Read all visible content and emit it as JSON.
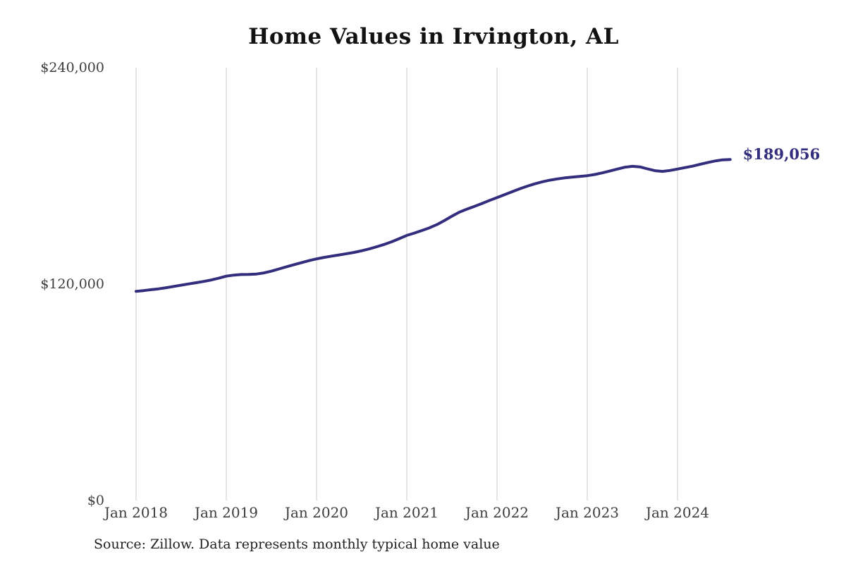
{
  "title": "Home Values in Irvington, AL",
  "source_note": "Source: Zillow. Data represents monthly typical home value",
  "final_value_label": "$189,056",
  "colors": {
    "background": "#ffffff",
    "line": "#322e7d",
    "final_value_label": "#322e7d",
    "title": "#121212",
    "axis_label": "#3d3d3d",
    "gridline": "#cbcbcb",
    "source": "#1f1f1f"
  },
  "chart_data": {
    "type": "line",
    "title": "Home Values in Irvington, AL",
    "xlabel": "",
    "ylabel": "",
    "ylim": [
      0,
      240000
    ],
    "grid": "vertical-only",
    "legend": "none",
    "annotation": "$189,056",
    "y_ticks": [
      {
        "label": "$0",
        "value": 0
      },
      {
        "label": "$120,000",
        "value": 120000
      },
      {
        "label": "$240,000",
        "value": 240000
      }
    ],
    "x_ticks": [
      {
        "label": "Jan 2018",
        "month_index": 0
      },
      {
        "label": "Jan 2019",
        "month_index": 12
      },
      {
        "label": "Jan 2020",
        "month_index": 24
      },
      {
        "label": "Jan 2021",
        "month_index": 36
      },
      {
        "label": "Jan 2022",
        "month_index": 48
      },
      {
        "label": "Jan 2023",
        "month_index": 60
      },
      {
        "label": "Jan 2024",
        "month_index": 72
      }
    ],
    "x": [
      "2018-01",
      "2018-02",
      "2018-03",
      "2018-04",
      "2018-05",
      "2018-06",
      "2018-07",
      "2018-08",
      "2018-09",
      "2018-10",
      "2018-11",
      "2018-12",
      "2019-01",
      "2019-02",
      "2019-03",
      "2019-04",
      "2019-05",
      "2019-06",
      "2019-07",
      "2019-08",
      "2019-09",
      "2019-10",
      "2019-11",
      "2019-12",
      "2020-01",
      "2020-02",
      "2020-03",
      "2020-04",
      "2020-05",
      "2020-06",
      "2020-07",
      "2020-08",
      "2020-09",
      "2020-10",
      "2020-11",
      "2020-12",
      "2021-01",
      "2021-02",
      "2021-03",
      "2021-04",
      "2021-05",
      "2021-06",
      "2021-07",
      "2021-08",
      "2021-09",
      "2021-10",
      "2021-11",
      "2021-12",
      "2022-01",
      "2022-02",
      "2022-03",
      "2022-04",
      "2022-05",
      "2022-06",
      "2022-07",
      "2022-08",
      "2022-09",
      "2022-10",
      "2022-11",
      "2022-12",
      "2023-01",
      "2023-02",
      "2023-03",
      "2023-04",
      "2023-05",
      "2023-06",
      "2023-07",
      "2023-08",
      "2023-09",
      "2023-10",
      "2023-11",
      "2023-12",
      "2024-01",
      "2024-02",
      "2024-03",
      "2024-04",
      "2024-05",
      "2024-06",
      "2024-07",
      "2024-08"
    ],
    "values": [
      116000,
      116400,
      116900,
      117400,
      118000,
      118700,
      119400,
      120100,
      120800,
      121500,
      122300,
      123300,
      124400,
      125000,
      125300,
      125400,
      125600,
      126200,
      127200,
      128400,
      129600,
      130800,
      131900,
      133000,
      134000,
      134800,
      135500,
      136200,
      136900,
      137600,
      138500,
      139500,
      140700,
      142000,
      143500,
      145200,
      147000,
      148300,
      149700,
      151200,
      153000,
      155200,
      157700,
      159900,
      161600,
      163100,
      164700,
      166400,
      168000,
      169600,
      171200,
      172800,
      174300,
      175600,
      176700,
      177600,
      178300,
      178900,
      179300,
      179700,
      180100,
      180800,
      181700,
      182700,
      183800,
      184800,
      185300,
      185000,
      183900,
      182900,
      182500,
      183000,
      183800,
      184600,
      185400,
      186400,
      187400,
      188300,
      188900,
      189056
    ]
  }
}
